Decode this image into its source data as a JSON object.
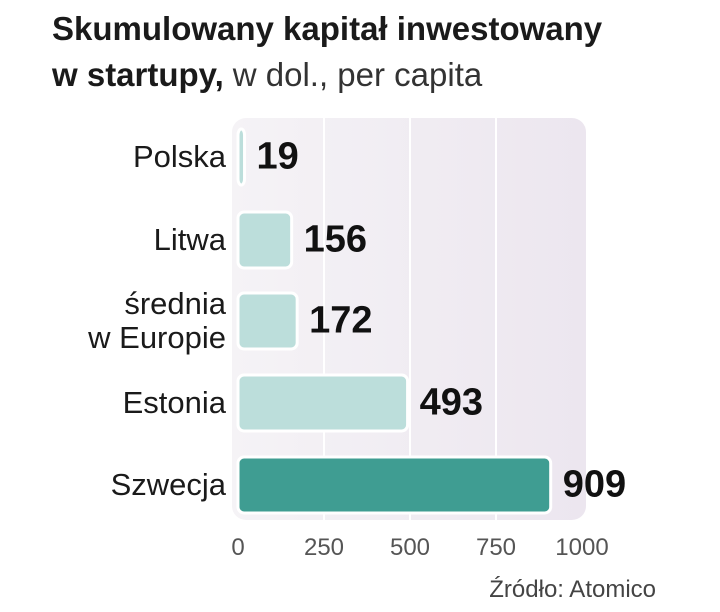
{
  "chart_data": {
    "type": "hbar",
    "title": [
      "Skumulowany kapitał inwestowany",
      "w startupy,"
    ],
    "subtitle": "w dol., per capita",
    "source": "Źródło: Atomico",
    "categories": [
      "Polska",
      "Litwa",
      "średnia\nw Europie",
      "Estonia",
      "Szwecja"
    ],
    "values": [
      19,
      156,
      172,
      493,
      909
    ],
    "colors": [
      "#bcdedb",
      "#bcdedb",
      "#bcdedb",
      "#bcdedb",
      "#3f9d92"
    ],
    "xlim": [
      0,
      1000
    ],
    "xticks": [
      0,
      250,
      500,
      750,
      1000
    ],
    "grid": true
  }
}
